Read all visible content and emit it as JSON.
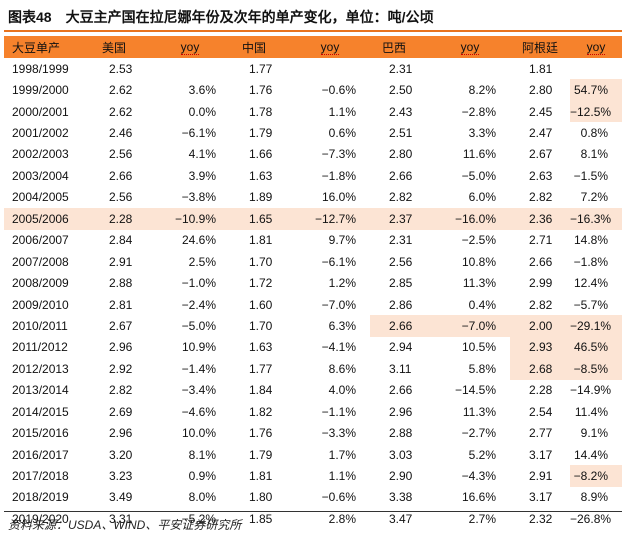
{
  "title": {
    "label": "图表48",
    "text": "大豆主产国在拉尼娜年份及次年的单产变化，单位：吨/公顷"
  },
  "columns": [
    "大豆单产",
    "美国",
    "yoy",
    "中国",
    "yoy",
    "巴西",
    "yoy",
    "阿根廷",
    "yoy"
  ],
  "rows": [
    [
      "1998/1999",
      "2.53",
      "",
      "1.77",
      "",
      "2.31",
      "",
      "1.81",
      ""
    ],
    [
      "1999/2000",
      "2.62",
      "3.6%",
      "1.76",
      "−0.6%",
      "2.50",
      "8.2%",
      "2.80",
      "54.7%"
    ],
    [
      "2000/2001",
      "2.62",
      "0.0%",
      "1.78",
      "1.1%",
      "2.43",
      "−2.8%",
      "2.45",
      "−12.5%"
    ],
    [
      "2001/2002",
      "2.46",
      "−6.1%",
      "1.79",
      "0.6%",
      "2.51",
      "3.3%",
      "2.47",
      "0.8%"
    ],
    [
      "2002/2003",
      "2.56",
      "4.1%",
      "1.66",
      "−7.3%",
      "2.80",
      "11.6%",
      "2.67",
      "8.1%"
    ],
    [
      "2003/2004",
      "2.66",
      "3.9%",
      "1.63",
      "−1.8%",
      "2.66",
      "−5.0%",
      "2.63",
      "−1.5%"
    ],
    [
      "2004/2005",
      "2.56",
      "−3.8%",
      "1.89",
      "16.0%",
      "2.82",
      "6.0%",
      "2.82",
      "7.2%"
    ],
    [
      "2005/2006",
      "2.28",
      "−10.9%",
      "1.65",
      "−12.7%",
      "2.37",
      "−16.0%",
      "2.36",
      "−16.3%"
    ],
    [
      "2006/2007",
      "2.84",
      "24.6%",
      "1.81",
      "9.7%",
      "2.31",
      "−2.5%",
      "2.71",
      "14.8%"
    ],
    [
      "2007/2008",
      "2.91",
      "2.5%",
      "1.70",
      "−6.1%",
      "2.56",
      "10.8%",
      "2.66",
      "−1.8%"
    ],
    [
      "2008/2009",
      "2.88",
      "−1.0%",
      "1.72",
      "1.2%",
      "2.85",
      "11.3%",
      "2.99",
      "12.4%"
    ],
    [
      "2009/2010",
      "2.81",
      "−2.4%",
      "1.60",
      "−7.0%",
      "2.86",
      "0.4%",
      "2.82",
      "−5.7%"
    ],
    [
      "2010/2011",
      "2.67",
      "−5.0%",
      "1.70",
      "6.3%",
      "2.66",
      "−7.0%",
      "2.00",
      "−29.1%"
    ],
    [
      "2011/2012",
      "2.96",
      "10.9%",
      "1.63",
      "−4.1%",
      "2.94",
      "10.5%",
      "2.93",
      "46.5%"
    ],
    [
      "2012/2013",
      "2.92",
      "−1.4%",
      "1.77",
      "8.6%",
      "3.11",
      "5.8%",
      "2.68",
      "−8.5%"
    ],
    [
      "2013/2014",
      "2.82",
      "−3.4%",
      "1.84",
      "4.0%",
      "2.66",
      "−14.5%",
      "2.28",
      "−14.9%"
    ],
    [
      "2014/2015",
      "2.69",
      "−4.6%",
      "1.82",
      "−1.1%",
      "2.96",
      "11.3%",
      "2.54",
      "11.4%"
    ],
    [
      "2015/2016",
      "2.96",
      "10.0%",
      "1.76",
      "−3.3%",
      "2.88",
      "−2.7%",
      "2.77",
      "9.1%"
    ],
    [
      "2016/2017",
      "3.20",
      "8.1%",
      "1.79",
      "1.7%",
      "3.03",
      "5.2%",
      "3.17",
      "14.4%"
    ],
    [
      "2017/2018",
      "3.23",
      "0.9%",
      "1.81",
      "1.1%",
      "2.90",
      "−4.3%",
      "2.91",
      "−8.2%"
    ],
    [
      "2018/2019",
      "3.49",
      "8.0%",
      "1.80",
      "−0.6%",
      "3.38",
      "16.6%",
      "3.17",
      "8.9%"
    ],
    [
      "2019/2020",
      "3.31",
      "−5.2%",
      "1.85",
      "2.8%",
      "3.47",
      "2.7%",
      "2.32",
      "−26.8%"
    ]
  ],
  "highlight": {
    "color": "#fce4d4",
    "header_color": "#f6822c",
    "full_rows": [
      7
    ],
    "cells": [
      [
        1,
        8
      ],
      [
        2,
        8
      ],
      [
        12,
        5
      ],
      [
        12,
        6
      ],
      [
        12,
        7
      ],
      [
        12,
        8
      ],
      [
        13,
        7
      ],
      [
        13,
        8
      ],
      [
        14,
        7
      ],
      [
        14,
        8
      ],
      [
        19,
        8
      ]
    ]
  },
  "source": "资料来源：USDA、WIND、平安证券研究所"
}
